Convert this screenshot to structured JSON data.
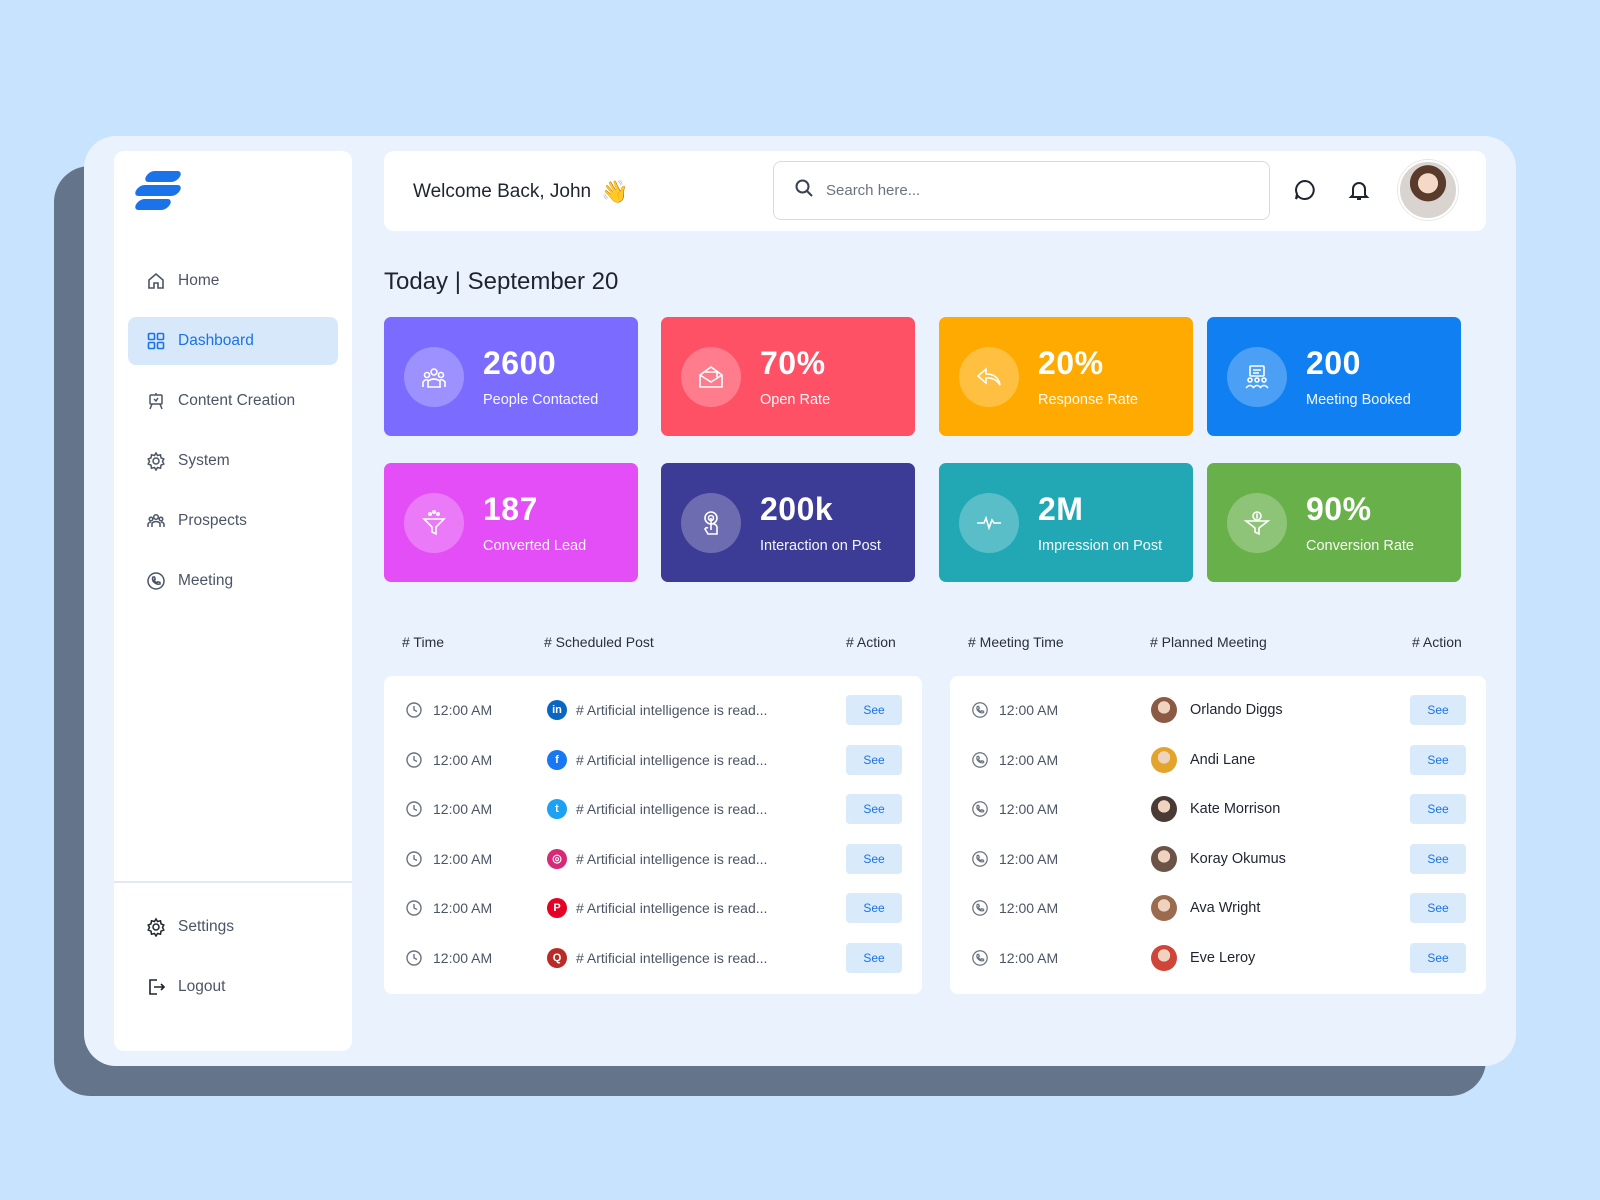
{
  "header": {
    "welcome": "Welcome Back, John",
    "wave_emoji": "👋",
    "search_placeholder": "Search here..."
  },
  "sidebar": {
    "items": [
      {
        "label": "Home",
        "icon": "home-icon",
        "active": false
      },
      {
        "label": "Dashboard",
        "icon": "grid-icon",
        "active": true
      },
      {
        "label": "Content Creation",
        "icon": "easel-icon",
        "active": false
      },
      {
        "label": "System",
        "icon": "gear-icon",
        "active": false
      },
      {
        "label": "Prospects",
        "icon": "people-icon",
        "active": false
      },
      {
        "label": "Meeting",
        "icon": "phone-icon",
        "active": false
      }
    ],
    "bottom": [
      {
        "label": "Settings",
        "icon": "gear-icon"
      },
      {
        "label": "Logout",
        "icon": "logout-icon"
      }
    ]
  },
  "date_title": "Today | September 20",
  "stats": [
    {
      "value": "2600",
      "label": "People Contacted",
      "color": "#7b6cff",
      "icon": "group-icon"
    },
    {
      "value": "70%",
      "label": "Open Rate",
      "color": "#ff5166",
      "icon": "envelope-icon"
    },
    {
      "value": "20%",
      "label": "Response Rate",
      "color": "#ffaa00",
      "icon": "reply-icon"
    },
    {
      "value": "200",
      "label": "Meeting Booked",
      "color": "#0f7ff2",
      "icon": "meeting-icon"
    },
    {
      "value": "187",
      "label": "Converted Lead",
      "color": "#e44ef7",
      "icon": "funnel-icon"
    },
    {
      "value": "200k",
      "label": "Interaction on Post",
      "color": "#3c3b96",
      "icon": "touch-icon"
    },
    {
      "value": "2M",
      "label": "Impression on Post",
      "color": "#22a8b4",
      "icon": "pulse-icon"
    },
    {
      "value": "90%",
      "label": "Conversion Rate",
      "color": "#68b04a",
      "icon": "money-funnel-icon"
    }
  ],
  "posts_table": {
    "headers": [
      "# Time",
      "# Scheduled Post",
      "# Action"
    ],
    "rows": [
      {
        "time": "12:00 AM",
        "network": "linkedin-icon",
        "glyph": "in",
        "color": "#0a66c2",
        "post": "# Artificial intelligence is read...",
        "action": "See"
      },
      {
        "time": "12:00 AM",
        "network": "facebook-icon",
        "glyph": "f",
        "color": "#1877f2",
        "post": "# Artificial intelligence is read...",
        "action": "See"
      },
      {
        "time": "12:00 AM",
        "network": "twitter-icon",
        "glyph": "t",
        "color": "#1da1f2",
        "post": "# Artificial intelligence is read...",
        "action": "See"
      },
      {
        "time": "12:00 AM",
        "network": "instagram-icon",
        "glyph": "◎",
        "color": "#d62976",
        "post": "# Artificial intelligence is read...",
        "action": "See"
      },
      {
        "time": "12:00 AM",
        "network": "pinterest-icon",
        "glyph": "P",
        "color": "#e60023",
        "post": "# Artificial intelligence is read...",
        "action": "See"
      },
      {
        "time": "12:00 AM",
        "network": "quora-icon",
        "glyph": "Q",
        "color": "#b92b27",
        "post": "# Artificial intelligence is read...",
        "action": "See"
      }
    ]
  },
  "meetings_table": {
    "headers": [
      "# Meeting Time",
      "# Planned Meeting",
      "# Action"
    ],
    "rows": [
      {
        "time": "12:00 AM",
        "name": "Orlando Diggs",
        "avatar_color": "#8a5a44",
        "action": "See"
      },
      {
        "time": "12:00 AM",
        "name": "Andi Lane",
        "avatar_color": "#e3a42b",
        "action": "See"
      },
      {
        "time": "12:00 AM",
        "name": "Kate Morrison",
        "avatar_color": "#4a3a35",
        "action": "See"
      },
      {
        "time": "12:00 AM",
        "name": "Koray Okumus",
        "avatar_color": "#6b5447",
        "action": "See"
      },
      {
        "time": "12:00 AM",
        "name": "Ava Wright",
        "avatar_color": "#9a6b4f",
        "action": "See"
      },
      {
        "time": "12:00 AM",
        "name": "Eve Leroy",
        "avatar_color": "#d0453a",
        "action": "See"
      }
    ]
  }
}
